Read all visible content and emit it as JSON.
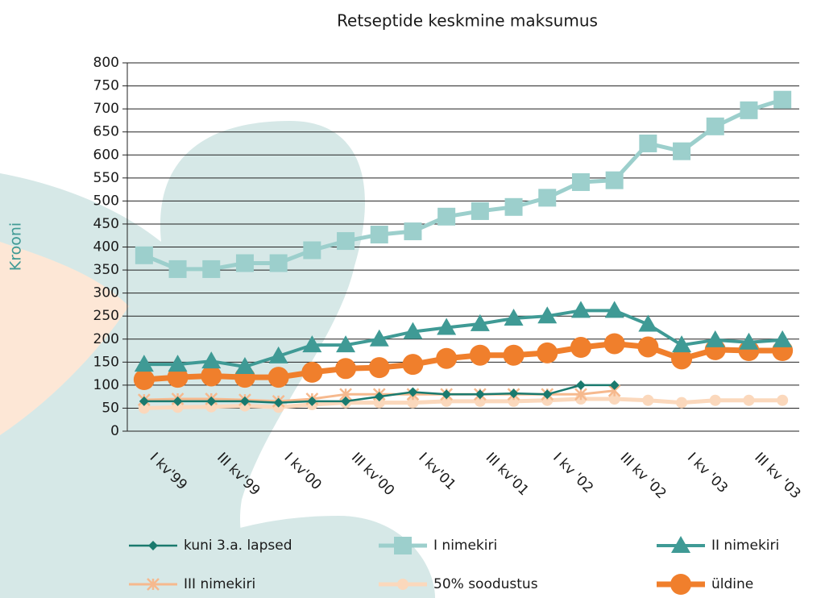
{
  "chart_data": {
    "type": "line",
    "title": "Retseptide keskmine maksumus",
    "y_label": "Krooni",
    "categories": [
      "I kv'99",
      null,
      "III kv'99",
      null,
      "I kv'00",
      null,
      "III kv'00",
      null,
      "I kv'01",
      null,
      "III kv'01",
      null,
      "I kv '02",
      null,
      "III kv '02",
      null,
      "I kv '03",
      null,
      "III kv '03",
      null
    ],
    "ylim": [
      0,
      800
    ],
    "yticks": [
      0,
      50,
      100,
      150,
      200,
      250,
      300,
      350,
      400,
      450,
      500,
      550,
      600,
      650,
      700,
      750,
      800
    ],
    "grid": true,
    "series": [
      {
        "name": "kuni 3.a. lapsed",
        "color": "#1a7a6e",
        "marker": "diamond",
        "values": [
          65,
          65,
          65,
          65,
          62,
          65,
          65,
          75,
          85,
          80,
          80,
          82,
          80,
          100,
          100,
          null,
          null,
          null,
          null,
          null
        ]
      },
      {
        "name": "I nimekiri",
        "color": "#9ccfcc",
        "marker": "square",
        "values": [
          382,
          352,
          352,
          365,
          365,
          393,
          413,
          427,
          434,
          466,
          478,
          487,
          507,
          541,
          545,
          625,
          608,
          662,
          697,
          720
        ]
      },
      {
        "name": "II nimekiri",
        "color": "#3f9a95",
        "marker": "triangle",
        "values": [
          145,
          145,
          152,
          140,
          163,
          187,
          187,
          200,
          216,
          225,
          233,
          245,
          250,
          262,
          262,
          232,
          187,
          198,
          193,
          198
        ]
      },
      {
        "name": "III nimekiri",
        "color": "#f6b98e",
        "marker": "x",
        "values": [
          68,
          70,
          70,
          68,
          65,
          70,
          80,
          80,
          80,
          80,
          80,
          80,
          80,
          80,
          88,
          null,
          null,
          null,
          null,
          null
        ]
      },
      {
        "name": "50% soodustus",
        "color": "#fbd8bc",
        "marker": "circle",
        "values": [
          50,
          52,
          53,
          55,
          52,
          58,
          62,
          62,
          62,
          65,
          65,
          65,
          67,
          70,
          70,
          67,
          62,
          67,
          67,
          67
        ]
      },
      {
        "name": "üldine",
        "color": "#f07f2c",
        "marker": "bigcircle",
        "values": [
          112,
          117,
          120,
          117,
          117,
          128,
          136,
          138,
          145,
          158,
          165,
          165,
          170,
          182,
          190,
          183,
          157,
          177,
          175,
          175
        ]
      }
    ]
  }
}
